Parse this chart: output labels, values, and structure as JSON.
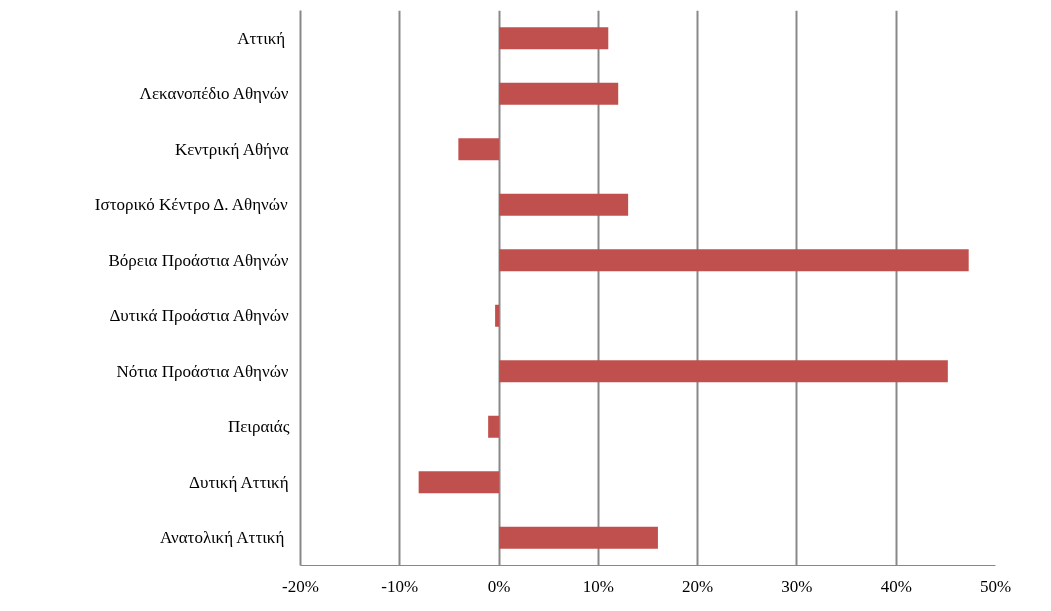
{
  "chart_data": {
    "type": "bar",
    "orientation": "horizontal",
    "categories": [
      "Αττική ",
      "Λεκανοπέδιο Αθηνών",
      "Κεντρική Αθήνα",
      "Ιστορικό Κέντρο Δ. Αθηνών",
      "Βόρεια Προάστια Αθηνών",
      "Δυτικά Προάστια Αθηνών",
      "Νότια Προάστια Αθηνών",
      "Πειραιάς",
      "Δυτική Αττική",
      "Ανατολική Αττική "
    ],
    "values": [
      11.0,
      12.0,
      -4.1,
      13.0,
      47.3,
      -0.4,
      45.2,
      -1.1,
      -8.1,
      16.0
    ],
    "color": "#c0504d",
    "xlim": [
      -20,
      50
    ],
    "xticks": [
      {
        "value": -20,
        "label": "-20%"
      },
      {
        "value": -10,
        "label": "-10%"
      },
      {
        "value": 0,
        "label": "0%"
      },
      {
        "value": 10,
        "label": "10%"
      },
      {
        "value": 20,
        "label": "20%"
      },
      {
        "value": 30,
        "label": "30%"
      },
      {
        "value": 40,
        "label": "40%"
      },
      {
        "value": 50,
        "label": "50%"
      }
    ],
    "grid": "x"
  }
}
